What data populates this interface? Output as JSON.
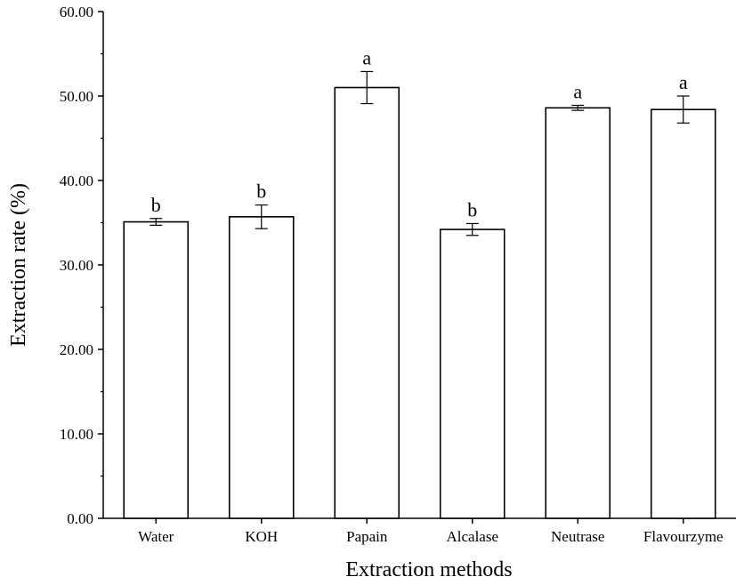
{
  "chart_data": {
    "type": "bar",
    "title": "",
    "xlabel": "Extraction methods",
    "ylabel": "Extraction rate (%)",
    "ylim": [
      0,
      60
    ],
    "yticks": [
      "0.00",
      "10.00",
      "20.00",
      "30.00",
      "40.00",
      "50.00",
      "60.00"
    ],
    "categories": [
      "Water",
      "KOH",
      "Papain",
      "Alcalase",
      "Neutrase",
      "Flavourzyme"
    ],
    "values": [
      35.1,
      35.7,
      51.0,
      34.2,
      48.6,
      48.4
    ],
    "errors": [
      0.4,
      1.4,
      1.9,
      0.7,
      0.3,
      1.6
    ],
    "significance": [
      "b",
      "b",
      "a",
      "b",
      "a",
      "a"
    ],
    "grid": false,
    "legend": "none",
    "bar_fill": "#ffffff",
    "bar_stroke": "#000000"
  }
}
